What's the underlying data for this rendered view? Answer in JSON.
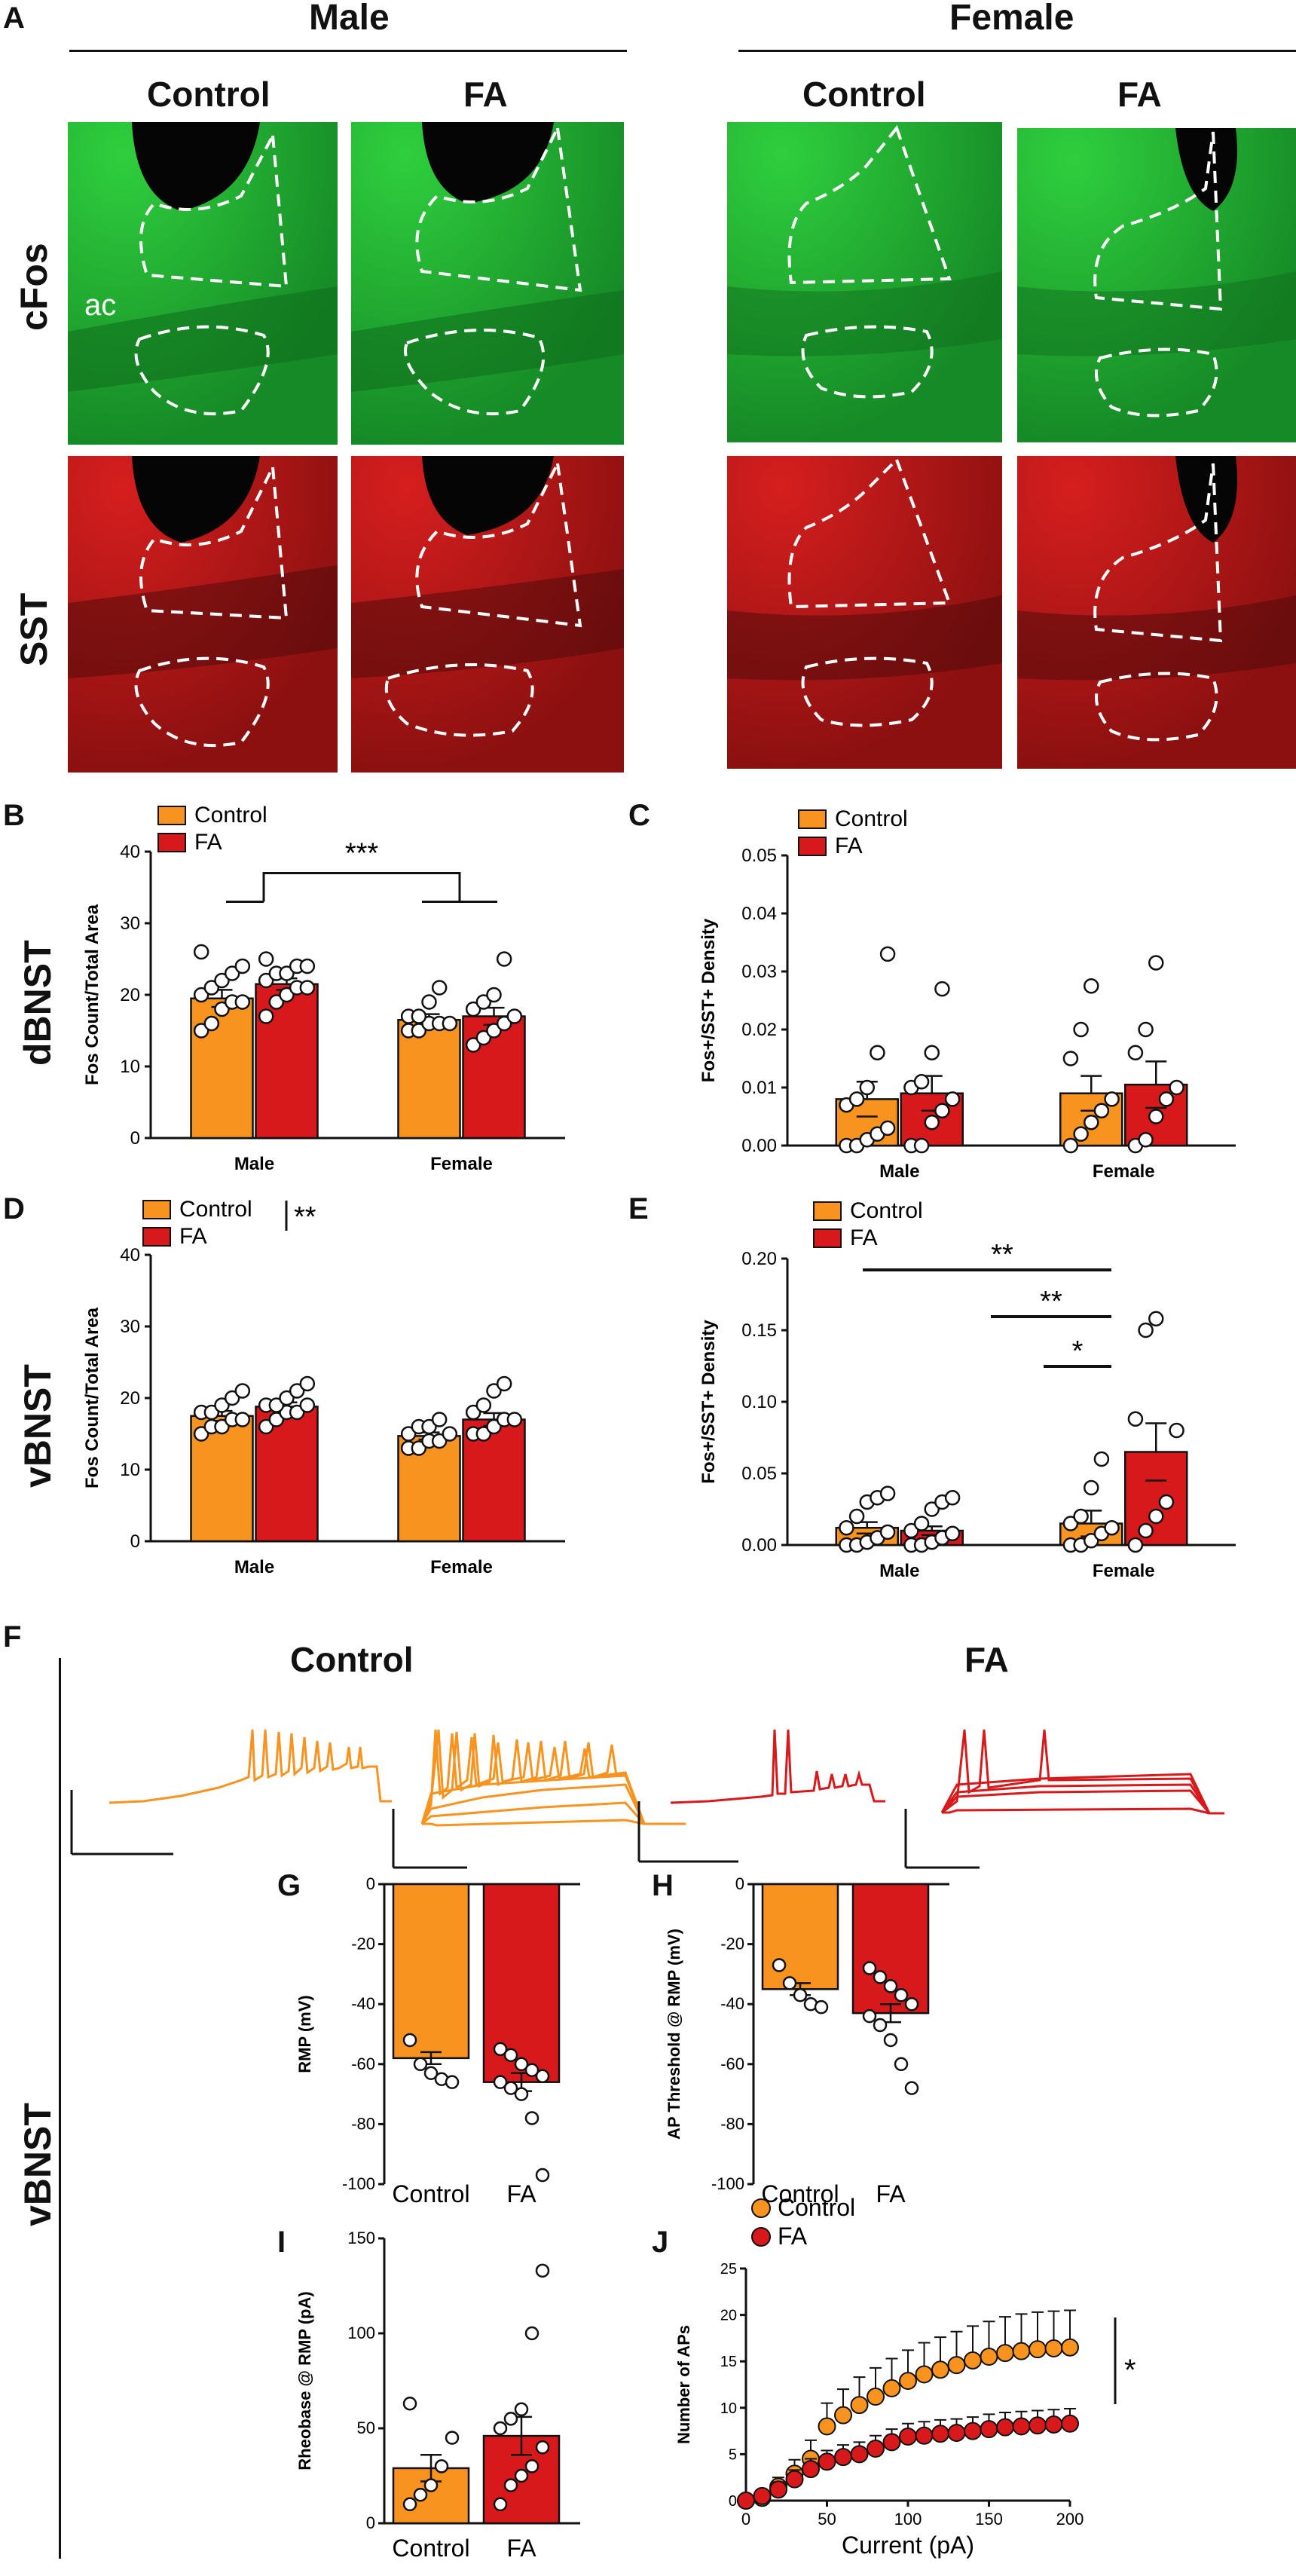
{
  "panel_letters": {
    "a": "A",
    "b": "B",
    "c": "C",
    "d": "D",
    "e": "E",
    "f": "F",
    "g": "G",
    "h": "H",
    "i": "I",
    "j": "J"
  },
  "panel_a": {
    "group_male": "Male",
    "group_female": "Female",
    "col_control": "Control",
    "col_fa": "FA",
    "row_cfos": "cFos",
    "row_sst": "SST",
    "ac_label": "ac"
  },
  "row_labels": {
    "dbnst": "dBNST",
    "vbnst": "vBNST",
    "vbnst_f": "vBNST"
  },
  "colors": {
    "control": "#f7931e",
    "fa": "#d7191c",
    "green": "#19a531",
    "red": "#b01515"
  },
  "panel_f": {
    "control": "Control",
    "fa": "FA"
  },
  "chart_data": [
    {
      "id": "B",
      "type": "bar",
      "categories": [
        "Male",
        "Female"
      ],
      "legend": [
        "Control",
        "FA"
      ],
      "ylabel": "Fos Count/Total Area",
      "ylim": [
        0,
        40
      ],
      "yticks": [
        0,
        10,
        20,
        30,
        40
      ],
      "series": [
        {
          "name": "Control",
          "values": [
            19.5,
            16.5
          ],
          "sem": [
            1.2,
            0.8
          ]
        },
        {
          "name": "FA",
          "values": [
            21.5,
            17.0
          ],
          "sem": [
            0.8,
            1.2
          ]
        }
      ],
      "points": [
        [
          [
            15,
            16,
            18,
            19,
            19,
            20,
            21,
            22,
            23,
            24,
            26
          ],
          [
            15,
            15,
            16,
            16,
            16,
            17,
            17,
            19,
            21
          ]
        ],
        [
          [
            17,
            19,
            20,
            21,
            21,
            22,
            23,
            23,
            24,
            24,
            25
          ],
          [
            13,
            14,
            15,
            16,
            17,
            18,
            19,
            20,
            25
          ]
        ]
      ],
      "annotations": [
        "***"
      ]
    },
    {
      "id": "C",
      "type": "bar",
      "categories": [
        "Male",
        "Female"
      ],
      "legend": [
        "Control",
        "FA"
      ],
      "ylabel": "Fos+/SST+ Density",
      "ylim": [
        0,
        0.05
      ],
      "yticks": [
        "0.00",
        "0.01",
        "0.02",
        "0.03",
        "0.04",
        "0.05"
      ],
      "series": [
        {
          "name": "Control",
          "values": [
            0.008,
            0.009
          ],
          "sem": [
            0.003,
            0.003
          ]
        },
        {
          "name": "FA",
          "values": [
            0.009,
            0.0105
          ],
          "sem": [
            0.003,
            0.004
          ]
        }
      ],
      "points": [
        [
          [
            0,
            0,
            0.001,
            0.002,
            0.003,
            0.007,
            0.008,
            0.01,
            0.016,
            0.033
          ],
          [
            0,
            0.002,
            0.004,
            0.006,
            0.008,
            0.015,
            0.02,
            0.0275
          ]
        ],
        [
          [
            0,
            0,
            0.004,
            0.006,
            0.008,
            0.01,
            0.011,
            0.016,
            0.027
          ],
          [
            0,
            0.001,
            0.005,
            0.008,
            0.01,
            0.016,
            0.02,
            0.0315
          ]
        ]
      ],
      "annotations": []
    },
    {
      "id": "D",
      "type": "bar",
      "categories": [
        "Male",
        "Female"
      ],
      "legend": [
        "Control",
        "FA"
      ],
      "ylabel": "Fos Count/Total Area",
      "ylim": [
        0,
        40
      ],
      "yticks": [
        0,
        10,
        20,
        30,
        40
      ],
      "series": [
        {
          "name": "Control",
          "values": [
            17.5,
            14.7
          ],
          "sem": [
            0.7,
            0.5
          ]
        },
        {
          "name": "FA",
          "values": [
            18.8,
            17.0
          ],
          "sem": [
            0.6,
            0.9
          ]
        }
      ],
      "points": [
        [
          [
            15,
            16,
            16,
            17,
            17,
            18,
            18,
            19,
            20,
            21
          ],
          [
            13,
            13,
            14,
            14,
            15,
            15,
            16,
            16,
            17
          ]
        ],
        [
          [
            16,
            17,
            18,
            18,
            19,
            19,
            19,
            20,
            21,
            22
          ],
          [
            15,
            15,
            16,
            17,
            17,
            18,
            19,
            21,
            22
          ]
        ]
      ],
      "annotations": [
        "**"
      ]
    },
    {
      "id": "E",
      "type": "bar",
      "categories": [
        "Male",
        "Female"
      ],
      "legend": [
        "Control",
        "FA"
      ],
      "ylabel": "Fos+/SST+ Density",
      "ylim": [
        0,
        0.2
      ],
      "yticks": [
        "0.00",
        "0.05",
        "0.10",
        "0.15",
        "0.20"
      ],
      "series": [
        {
          "name": "Control",
          "values": [
            0.012,
            0.015
          ],
          "sem": [
            0.004,
            0.009
          ]
        },
        {
          "name": "FA",
          "values": [
            0.01,
            0.065
          ],
          "sem": [
            0.003,
            0.02
          ]
        }
      ],
      "points": [
        [
          [
            0,
            0,
            0.002,
            0.005,
            0.009,
            0.012,
            0.02,
            0.03,
            0.033,
            0.036
          ],
          [
            0,
            0,
            0.003,
            0.008,
            0.012,
            0.015,
            0.02,
            0.04,
            0.06
          ]
        ],
        [
          [
            0,
            0,
            0.002,
            0.005,
            0.008,
            0.01,
            0.015,
            0.025,
            0.03,
            0.033
          ],
          [
            0,
            0.01,
            0.02,
            0.03,
            0.08,
            0.088,
            0.15,
            0.158
          ]
        ]
      ],
      "annotations": [
        "**",
        "**",
        "*"
      ]
    },
    {
      "id": "G",
      "type": "bar",
      "categories": [
        "Control",
        "FA"
      ],
      "ylabel": "RMP (mV)",
      "ylim": [
        -100,
        0
      ],
      "yticks": [
        "0",
        "-20",
        "-40",
        "-60",
        "-80",
        "-100"
      ],
      "values": [
        -58,
        -66
      ],
      "sem": [
        2,
        3
      ],
      "points": [
        [
          -52,
          -60,
          -63,
          -65,
          -66
        ],
        [
          -55,
          -57,
          -60,
          -62,
          -64,
          -66,
          -68,
          -70,
          -78,
          -97
        ]
      ]
    },
    {
      "id": "H",
      "type": "bar",
      "categories": [
        "Control",
        "FA"
      ],
      "ylabel": "AP Threshold @ RMP (mV)",
      "ylim": [
        -100,
        0
      ],
      "yticks": [
        "0",
        "-20",
        "-40",
        "-60",
        "-80",
        "-100"
      ],
      "values": [
        -35,
        -43
      ],
      "sem": [
        2,
        3
      ],
      "points": [
        [
          -27,
          -33,
          -37,
          -40,
          -41
        ],
        [
          -28,
          -31,
          -34,
          -37,
          -40,
          -44,
          -47,
          -52,
          -60,
          -68
        ]
      ]
    },
    {
      "id": "I",
      "type": "bar",
      "categories": [
        "Control",
        "FA"
      ],
      "ylabel": "Rheobase @ RMP (pA)",
      "ylim": [
        0,
        150
      ],
      "yticks": [
        "0",
        "50",
        "100",
        "150"
      ],
      "values": [
        29,
        46
      ],
      "sem": [
        7,
        10
      ],
      "points": [
        [
          10,
          15,
          20,
          30,
          45,
          63
        ],
        [
          10,
          20,
          25,
          30,
          40,
          50,
          55,
          60,
          100,
          133
        ]
      ]
    },
    {
      "id": "J",
      "type": "line",
      "xlabel": "Current (pA)",
      "ylabel": "Number of APs",
      "xlim": [
        0,
        200
      ],
      "ylim": [
        0,
        25
      ],
      "xticks": [
        "0",
        "50",
        "100",
        "150",
        "200"
      ],
      "yticks": [
        "0",
        "5",
        "10",
        "15",
        "20",
        "25"
      ],
      "legend": [
        "Control",
        "FA"
      ],
      "annotations": [
        "*"
      ],
      "x": [
        0,
        10,
        20,
        30,
        40,
        50,
        60,
        70,
        80,
        90,
        100,
        110,
        120,
        130,
        140,
        150,
        160,
        170,
        180,
        190,
        200
      ],
      "series": [
        {
          "name": "Control",
          "values": [
            0,
            0.3,
            1.5,
            2.9,
            4.5,
            8.0,
            9.2,
            10.3,
            11.2,
            12.1,
            12.9,
            13.6,
            14.1,
            14.6,
            15.1,
            15.5,
            15.9,
            16.1,
            16.3,
            16.4,
            16.5
          ],
          "sem": [
            0,
            0.3,
            1,
            1.5,
            2,
            2.5,
            2.8,
            3,
            3.1,
            3.2,
            3.3,
            3.4,
            3.5,
            3.6,
            3.7,
            3.8,
            3.9,
            4,
            4,
            4,
            4
          ]
        },
        {
          "name": "FA",
          "values": [
            0,
            0.5,
            1.2,
            2.3,
            3.4,
            4.2,
            4.7,
            5.0,
            5.6,
            6.3,
            6.9,
            7.0,
            7.2,
            7.3,
            7.5,
            7.7,
            7.9,
            8.0,
            8.1,
            8.2,
            8.3
          ],
          "sem": [
            0,
            0.4,
            0.8,
            1,
            1.1,
            1.2,
            1.3,
            1.3,
            1.4,
            1.4,
            1.4,
            1.5,
            1.5,
            1.5,
            1.5,
            1.6,
            1.6,
            1.6,
            1.6,
            1.6,
            1.6
          ]
        }
      ]
    }
  ]
}
